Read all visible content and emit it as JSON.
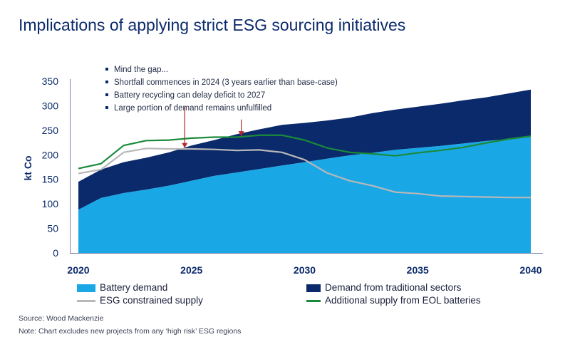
{
  "title": "Implications of applying strict ESG sourcing initiatives",
  "annotations": [
    "Mind the gap...",
    "Shortfall commences in 2024 (3 years earlier than base-case)",
    "Battery recycling can delay deficit to 2027",
    "Large portion of demand remains unfulfilled"
  ],
  "source": "Source: Wood Mackenzie",
  "note": "Note: Chart excludes new projects from any ‘high risk’ ESG regions",
  "colors": {
    "battery": "#1aa7e6",
    "traditional": "#0b2a6b",
    "esg": "#b8b8b8",
    "eol": "#1a8a3a",
    "arrow": "#b3282d"
  },
  "chart_data": {
    "type": "area",
    "ylabel": "kt Co",
    "xlim": [
      2020,
      2040
    ],
    "ylim": [
      0,
      350
    ],
    "x_ticks": [
      2020,
      2025,
      2030,
      2035,
      2040
    ],
    "y_ticks": [
      0,
      50,
      100,
      150,
      200,
      250,
      300,
      350
    ],
    "x": [
      2020,
      2021,
      2022,
      2023,
      2024,
      2025,
      2026,
      2027,
      2028,
      2029,
      2030,
      2031,
      2032,
      2033,
      2034,
      2035,
      2036,
      2037,
      2038,
      2039,
      2040
    ],
    "series": [
      {
        "name": "Battery demand",
        "kind": "stacked-area",
        "values": [
          88,
          112,
          122,
          129,
          137,
          147,
          157,
          164,
          171,
          178,
          185,
          192,
          199,
          204,
          210,
          214,
          218,
          223,
          228,
          232,
          237
        ]
      },
      {
        "name": "Demand from traditional sectors",
        "kind": "stacked-area",
        "values": [
          57,
          58,
          63,
          65,
          68,
          72,
          73,
          78,
          81,
          83,
          80,
          78,
          77,
          81,
          82,
          84,
          86,
          88,
          89,
          93,
          96
        ]
      },
      {
        "name": "ESG constrained supply",
        "kind": "line",
        "values": [
          162,
          170,
          205,
          213,
          212,
          212,
          211,
          209,
          210,
          205,
          190,
          163,
          147,
          137,
          124,
          121,
          116,
          115,
          114,
          113,
          113
        ]
      },
      {
        "name": "Additional supply from EOL batteries",
        "kind": "line",
        "values": [
          172,
          182,
          219,
          229,
          230,
          234,
          236,
          236,
          240,
          240,
          230,
          214,
          205,
          202,
          198,
          204,
          209,
          215,
          224,
          232,
          238
        ]
      }
    ],
    "arrows": [
      {
        "x": 2024.7,
        "from_y": 298,
        "to_y": 214
      },
      {
        "x": 2027.2,
        "from_y": 272,
        "to_y": 238
      }
    ],
    "legend": [
      {
        "label": "Battery demand",
        "kind": "box",
        "color": "#1aa7e6"
      },
      {
        "label": "Demand from traditional sectors",
        "kind": "box",
        "color": "#0b2a6b"
      },
      {
        "label": "ESG constrained supply",
        "kind": "line",
        "color": "#b8b8b8"
      },
      {
        "label": "Additional supply from EOL batteries",
        "kind": "line",
        "color": "#1a8a3a"
      }
    ]
  }
}
